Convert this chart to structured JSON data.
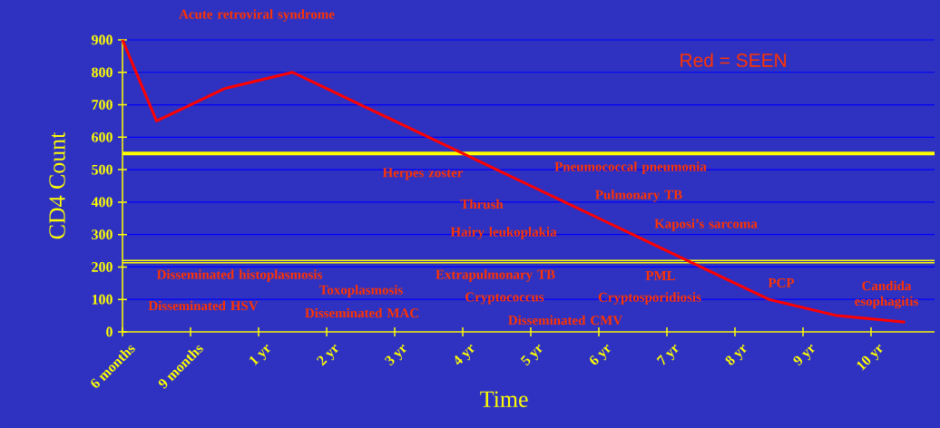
{
  "chart_data": {
    "type": "line",
    "xlabel": "Time",
    "ylabel": "CD4 Count",
    "categories": [
      "6 months",
      null,
      "9 months",
      null,
      "1 yr",
      null,
      "2 yr",
      null,
      "3 yr",
      null,
      "4 yr",
      null,
      "5 yr",
      null,
      "6 yr",
      null,
      "7 yr",
      null,
      "8 yr",
      null,
      "9 yr",
      null,
      "10 yr",
      null
    ],
    "values": [
      900,
      650,
      700,
      750,
      775,
      800,
      750,
      700,
      650,
      600,
      550,
      500,
      450,
      400,
      350,
      300,
      250,
      200,
      150,
      100,
      75,
      50,
      40,
      30
    ],
    "color": "#ff0000",
    "ylim": [
      0,
      900
    ],
    "yticks": [
      0,
      100,
      200,
      300,
      400,
      500,
      600,
      700,
      800,
      900
    ],
    "grid": "y",
    "ref_lines": [
      {
        "axis": "y",
        "value": 550,
        "color": "#ffff00"
      },
      {
        "axis": "y",
        "value": 213,
        "color": "#ffff00"
      },
      {
        "axis": "y",
        "value": 220,
        "color": "#ffff00"
      }
    ],
    "annotations": [
      "Acute retroviral syndrome",
      "Herpes zoster",
      "Pneumococcal pneumonia",
      "Thrush",
      "Pulmonary TB",
      "Hairy leukoplakia",
      "Kaposi’s sarcoma",
      "Disseminated histoplasmosis",
      "Disseminated HSV",
      "Toxoplasmosis",
      "Disseminated MAC",
      "Extrapulmonary TB",
      "Cryptococcus",
      "Disseminated CMV",
      "PML",
      "Cryptosporidiosis",
      "PCP",
      "Candida esophagitis",
      "Red = SEEN"
    ]
  }
}
